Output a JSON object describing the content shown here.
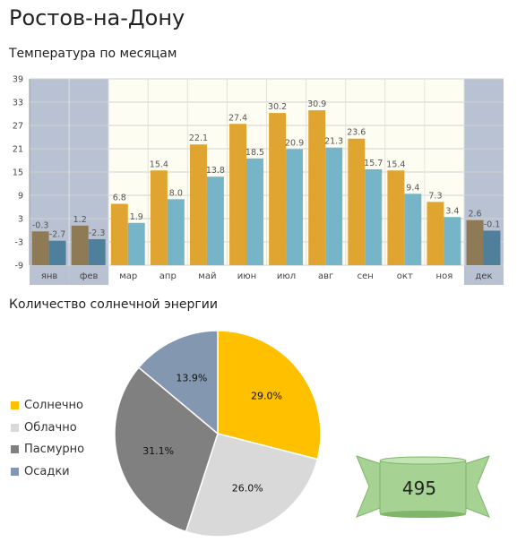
{
  "page_title": "Ростов-на-Дону",
  "badge_value": "495",
  "colors": {
    "high": "#E0A431",
    "low": "#76B4C8",
    "high_winter": "#8E7A55",
    "low_winter": "#4E7F9B",
    "winter_band": "#B8C2D3",
    "plot_bg": "#FEFDF2",
    "ribbon": "#A6D393",
    "ribbon_dark": "#7FB66A"
  },
  "chart_data": [
    {
      "type": "bar",
      "title": "Температура по месяцам",
      "categories": [
        "янв",
        "фев",
        "мар",
        "апр",
        "май",
        "июн",
        "июл",
        "авг",
        "сен",
        "окт",
        "ноя",
        "дек"
      ],
      "winter_months": [
        "янв",
        "фев",
        "дек"
      ],
      "series": [
        {
          "values": [
            -0.3,
            1.2,
            6.8,
            15.4,
            22.1,
            27.4,
            30.2,
            30.9,
            23.6,
            15.4,
            7.3,
            2.6
          ]
        },
        {
          "values": [
            -2.7,
            -2.3,
            1.9,
            8.0,
            13.8,
            18.5,
            20.9,
            21.3,
            15.7,
            9.4,
            3.4,
            -0.1
          ]
        }
      ],
      "value_labels": [
        [
          "-0.3",
          "1.2",
          "6.8",
          "15.4",
          "22.1",
          "27.4",
          "30.2",
          "30.9",
          "23.6",
          "15.4",
          "7.3",
          "2.6"
        ],
        [
          "-2.7",
          "-2.3",
          "1.9",
          "8.0",
          "13.8",
          "18.5",
          "20.9",
          "21.3",
          "15.7",
          "9.4",
          "3.4",
          "-0.1"
        ]
      ],
      "ylim": [
        -9,
        39
      ],
      "yticks": [
        -9,
        -3,
        3,
        9,
        15,
        21,
        27,
        33,
        39
      ],
      "ytick_labels": [
        "-9",
        "-3",
        "3",
        "9",
        "15",
        "21",
        "27",
        "33",
        "39"
      ],
      "grid": true
    },
    {
      "type": "pie",
      "title": "Количество солнечной энергии",
      "legend_position": "left",
      "slices": [
        {
          "label": "Солнечно",
          "value": 29.0,
          "text": "29.0%",
          "color": "#FFC000"
        },
        {
          "label": "Облачно",
          "value": 26.0,
          "text": "26.0%",
          "color": "#D9D9D9"
        },
        {
          "label": "Пасмурно",
          "value": 31.1,
          "text": "31.1%",
          "color": "#808080"
        },
        {
          "label": "Осадки",
          "value": 13.9,
          "text": "13.9%",
          "color": "#8497B0"
        }
      ]
    }
  ]
}
